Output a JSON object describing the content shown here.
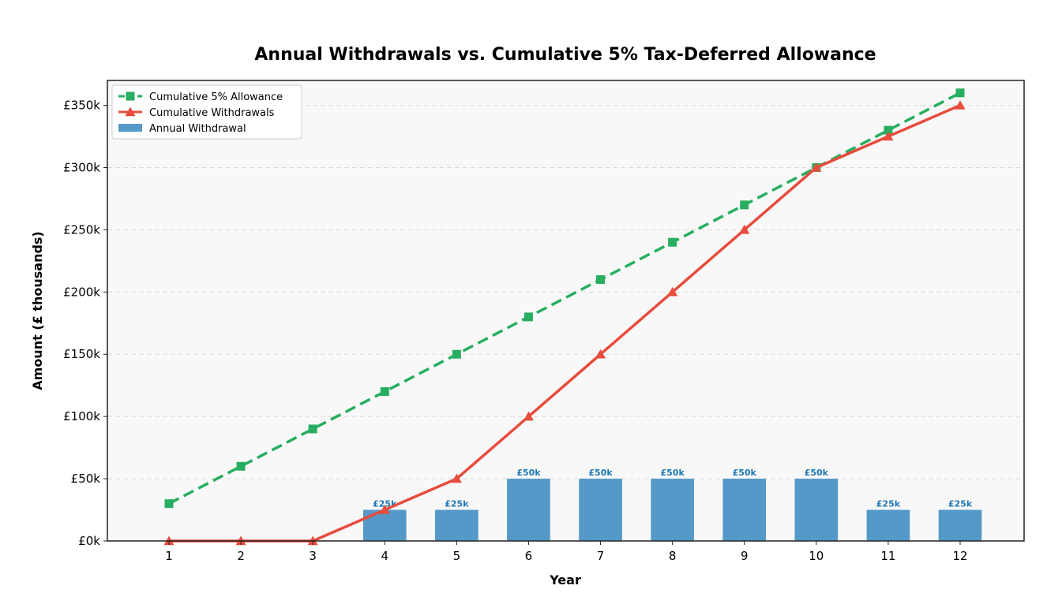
{
  "chart_data": {
    "type": "bar",
    "title": "Annual Withdrawals vs. Cumulative 5% Tax-Deferred Allowance",
    "xlabel": "Year",
    "ylabel": "Amount (£ thousands)",
    "ylim": [
      0,
      370
    ],
    "grid": "horizontal dashed",
    "legend_position": "top-left",
    "categories": [
      "1",
      "2",
      "3",
      "4",
      "5",
      "6",
      "7",
      "8",
      "9",
      "10",
      "11",
      "12"
    ],
    "y_ticks": [
      0,
      50,
      100,
      150,
      200,
      250,
      300,
      350
    ],
    "y_tick_labels": [
      "£0k",
      "£50k",
      "£100k",
      "£150k",
      "£200k",
      "£250k",
      "£300k",
      "£350k"
    ],
    "series": [
      {
        "name": "Cumulative 5% Allowance",
        "kind": "line",
        "style": "dashed",
        "marker": "square",
        "color": "#27ae60",
        "values": [
          30,
          60,
          90,
          120,
          150,
          180,
          210,
          240,
          270,
          300,
          330,
          360
        ]
      },
      {
        "name": "Cumulative Withdrawals",
        "kind": "line",
        "style": "solid",
        "marker": "triangle",
        "color": "#e74c3c",
        "values": [
          0,
          0,
          0,
          25,
          50,
          100,
          150,
          200,
          250,
          300,
          325,
          350
        ]
      },
      {
        "name": "Annual Withdrawal",
        "kind": "bar",
        "color": "#5499c7",
        "values": [
          0,
          0,
          0,
          25,
          25,
          50,
          50,
          50,
          50,
          50,
          25,
          25
        ],
        "labels": [
          "",
          "",
          "",
          "£25k",
          "£25k",
          "£50k",
          "£50k",
          "£50k",
          "£50k",
          "£50k",
          "£25k",
          "£25k"
        ]
      }
    ]
  }
}
